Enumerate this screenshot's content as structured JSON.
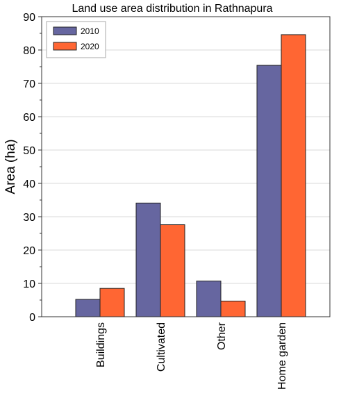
{
  "chart_data": {
    "type": "bar",
    "title": "Land use area distribution in Rathnapura",
    "xlabel": "",
    "ylabel": "Area (ha)",
    "categories": [
      "Buildings",
      "Cultivated",
      "Other",
      "Home garden"
    ],
    "series": [
      {
        "name": "2010",
        "values": [
          5.2,
          34.1,
          10.7,
          75.4
        ],
        "color": "#6666a0"
      },
      {
        "name": "2020",
        "values": [
          8.5,
          27.6,
          4.7,
          84.6
        ],
        "color": "#ff6633"
      }
    ],
    "ylim": [
      0,
      90
    ],
    "yticks": [
      0,
      10,
      20,
      30,
      40,
      50,
      60,
      70,
      80,
      90
    ],
    "grid": true,
    "legend_position": "top-left"
  }
}
